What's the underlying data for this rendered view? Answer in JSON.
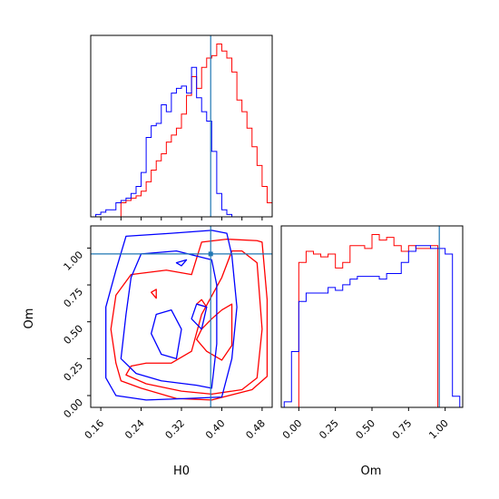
{
  "colors": {
    "series_a": "#ff0000",
    "series_b": "#0000ff",
    "truth": "#1f77b4",
    "frame": "#000000"
  },
  "chart_data": [
    {
      "type": "histogram",
      "panel": "H0 marginal",
      "xlim": [
        0.14,
        0.5
      ],
      "truth": 0.378,
      "x_ticks": [
        0.16,
        0.2,
        0.24,
        0.28,
        0.32,
        0.36,
        0.4,
        0.44,
        0.48
      ],
      "series": [
        {
          "color": "red",
          "bin_edges": [
            0.2,
            0.21,
            0.22,
            0.23,
            0.24,
            0.25,
            0.26,
            0.27,
            0.28,
            0.29,
            0.3,
            0.31,
            0.32,
            0.33,
            0.34,
            0.35,
            0.36,
            0.37,
            0.38,
            0.39,
            0.4,
            0.41,
            0.42,
            0.43,
            0.44,
            0.45,
            0.46,
            0.47,
            0.48,
            0.49,
            0.5
          ],
          "counts": [
            6,
            7,
            8,
            9,
            11,
            15,
            20,
            24,
            27,
            32,
            35,
            38,
            44,
            52,
            60,
            55,
            64,
            68,
            69,
            74,
            71,
            68,
            62,
            50,
            45,
            38,
            30,
            22,
            13,
            6
          ]
        },
        {
          "color": "blue",
          "bin_edges": [
            0.14,
            0.15,
            0.16,
            0.17,
            0.18,
            0.19,
            0.2,
            0.21,
            0.22,
            0.23,
            0.24,
            0.25,
            0.26,
            0.27,
            0.28,
            0.29,
            0.3,
            0.31,
            0.32,
            0.33,
            0.34,
            0.35,
            0.36,
            0.37,
            0.38,
            0.39,
            0.4,
            0.41,
            0.42,
            0.43,
            0.44
          ],
          "counts": [
            0,
            1,
            2,
            3,
            3,
            6,
            7,
            8,
            10,
            13,
            19,
            34,
            39,
            40,
            48,
            45,
            53,
            55,
            56,
            53,
            64,
            51,
            45,
            41,
            28,
            10,
            3,
            1,
            0,
            0
          ]
        }
      ]
    },
    {
      "type": "contour",
      "panel": "H0 vs Om 2D",
      "xlabel": "H0",
      "ylabel": "Om",
      "xlim": [
        0.14,
        0.5
      ],
      "ylim": [
        -0.08,
        1.15
      ],
      "truth": {
        "x": 0.378,
        "y": 0.96
      },
      "x_ticks": [
        "0.16",
        "0.24",
        "0.32",
        "0.40",
        "0.48"
      ],
      "y_ticks": [
        "0.00",
        "0.25",
        "0.50",
        "0.75",
        "1.00"
      ],
      "series": [
        {
          "color": "red",
          "contours": [
            [
              [
                0.19,
                0.22
              ],
              [
                0.2,
                0.1
              ],
              [
                0.24,
                0.05
              ],
              [
                0.31,
                -0.02
              ],
              [
                0.38,
                -0.03
              ],
              [
                0.46,
                0.04
              ],
              [
                0.49,
                0.13
              ],
              [
                0.49,
                0.65
              ],
              [
                0.48,
                1.04
              ],
              [
                0.47,
                1.05
              ],
              [
                0.41,
                1.06
              ],
              [
                0.36,
                1.04
              ],
              [
                0.34,
                0.82
              ],
              [
                0.29,
                0.85
              ],
              [
                0.22,
                0.82
              ],
              [
                0.19,
                0.68
              ],
              [
                0.18,
                0.45
              ],
              [
                0.19,
                0.22
              ]
            ],
            [
              [
                0.21,
                0.14
              ],
              [
                0.25,
                0.08
              ],
              [
                0.32,
                0.03
              ],
              [
                0.38,
                0.01
              ],
              [
                0.44,
                0.04
              ],
              [
                0.47,
                0.12
              ],
              [
                0.48,
                0.45
              ],
              [
                0.47,
                0.9
              ],
              [
                0.44,
                0.98
              ],
              [
                0.42,
                0.98
              ],
              [
                0.4,
                0.8
              ],
              [
                0.36,
                0.55
              ],
              [
                0.34,
                0.3
              ],
              [
                0.3,
                0.22
              ],
              [
                0.25,
                0.22
              ],
              [
                0.22,
                0.2
              ],
              [
                0.21,
                0.14
              ]
            ],
            [
              [
                0.35,
                0.38
              ],
              [
                0.37,
                0.3
              ],
              [
                0.4,
                0.24
              ],
              [
                0.42,
                0.34
              ],
              [
                0.42,
                0.62
              ],
              [
                0.4,
                0.58
              ],
              [
                0.38,
                0.52
              ],
              [
                0.36,
                0.45
              ],
              [
                0.35,
                0.38
              ]
            ],
            [
              [
                0.26,
                0.7
              ],
              [
                0.27,
                0.72
              ],
              [
                0.27,
                0.66
              ],
              [
                0.26,
                0.7
              ]
            ],
            [
              [
                0.35,
                0.62
              ],
              [
                0.36,
                0.65
              ],
              [
                0.37,
                0.6
              ],
              [
                0.35,
                0.62
              ]
            ]
          ]
        },
        {
          "color": "blue",
          "contours": [
            [
              [
                0.17,
                0.12
              ],
              [
                0.19,
                0.0
              ],
              [
                0.25,
                -0.03
              ],
              [
                0.33,
                -0.02
              ],
              [
                0.4,
                -0.01
              ],
              [
                0.42,
                0.25
              ],
              [
                0.43,
                0.6
              ],
              [
                0.42,
                0.95
              ],
              [
                0.41,
                1.1
              ],
              [
                0.38,
                1.12
              ],
              [
                0.3,
                1.1
              ],
              [
                0.21,
                1.08
              ],
              [
                0.19,
                0.85
              ],
              [
                0.17,
                0.6
              ],
              [
                0.17,
                0.12
              ]
            ],
            [
              [
                0.2,
                0.25
              ],
              [
                0.23,
                0.15
              ],
              [
                0.28,
                0.1
              ],
              [
                0.35,
                0.07
              ],
              [
                0.38,
                0.05
              ],
              [
                0.39,
                0.35
              ],
              [
                0.39,
                0.75
              ],
              [
                0.38,
                0.92
              ],
              [
                0.31,
                0.98
              ],
              [
                0.24,
                0.96
              ],
              [
                0.22,
                0.8
              ],
              [
                0.21,
                0.55
              ],
              [
                0.2,
                0.25
              ]
            ],
            [
              [
                0.26,
                0.42
              ],
              [
                0.28,
                0.28
              ],
              [
                0.31,
                0.25
              ],
              [
                0.32,
                0.45
              ],
              [
                0.3,
                0.58
              ],
              [
                0.27,
                0.55
              ],
              [
                0.26,
                0.42
              ]
            ],
            [
              [
                0.34,
                0.52
              ],
              [
                0.36,
                0.45
              ],
              [
                0.37,
                0.6
              ],
              [
                0.35,
                0.62
              ],
              [
                0.34,
                0.52
              ]
            ],
            [
              [
                0.31,
                0.9
              ],
              [
                0.33,
                0.92
              ],
              [
                0.32,
                0.88
              ],
              [
                0.31,
                0.9
              ]
            ]
          ]
        }
      ]
    },
    {
      "type": "histogram",
      "panel": "Om marginal",
      "xlabel": "Om",
      "xlim": [
        -0.12,
        1.12
      ],
      "truth": 0.96,
      "x_ticks": [
        "0.00",
        "0.25",
        "0.50",
        "0.75",
        "1.00"
      ],
      "series": [
        {
          "color": "red",
          "bin_edges": [
            0.0,
            0.05,
            0.1,
            0.15,
            0.2,
            0.25,
            0.3,
            0.35,
            0.4,
            0.45,
            0.5,
            0.55,
            0.6,
            0.65,
            0.7,
            0.75,
            0.8,
            0.85,
            0.9,
            0.95,
            1.0
          ],
          "counts": [
            52,
            56,
            55,
            54,
            55,
            50,
            52,
            58,
            58,
            57,
            62,
            60,
            61,
            58,
            56,
            58,
            57,
            57,
            58,
            0
          ]
        },
        {
          "color": "blue",
          "bin_edges": [
            -0.1,
            -0.05,
            0.0,
            0.05,
            0.1,
            0.15,
            0.2,
            0.25,
            0.3,
            0.35,
            0.4,
            0.45,
            0.5,
            0.55,
            0.6,
            0.65,
            0.7,
            0.75,
            0.8,
            0.85,
            0.9,
            0.95,
            1.0,
            1.05,
            1.1
          ],
          "counts": [
            2,
            20,
            38,
            41,
            41,
            41,
            43,
            42,
            44,
            46,
            47,
            47,
            47,
            46,
            48,
            48,
            52,
            56,
            58,
            58,
            57,
            57,
            55,
            4
          ]
        }
      ]
    }
  ]
}
